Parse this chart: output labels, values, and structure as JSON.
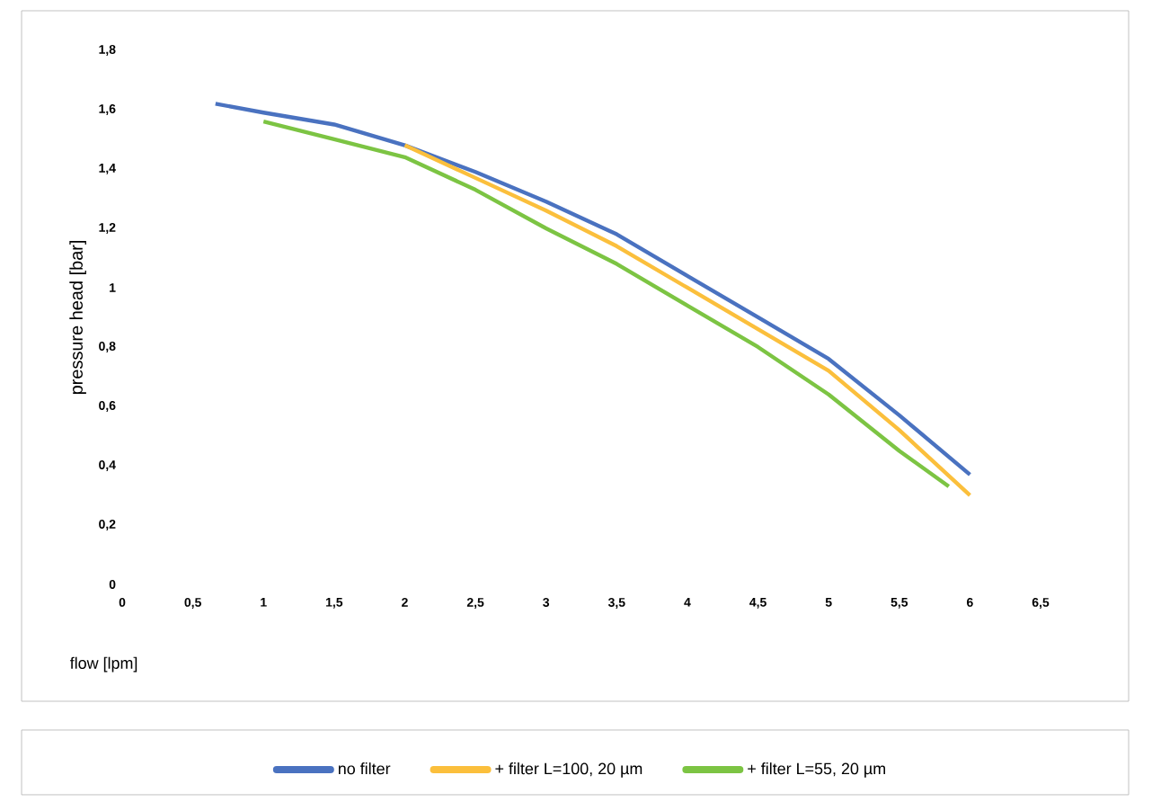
{
  "chart_data": {
    "type": "line",
    "xlabel": "flow [lpm]",
    "ylabel": "pressure head [bar]",
    "xlim": [
      0,
      6.5
    ],
    "ylim": [
      0,
      1.8
    ],
    "xticks": [
      0,
      {
        "value": 0.5,
        "label": "0,5"
      },
      1,
      {
        "value": 1.5,
        "label": "1,5"
      },
      2,
      {
        "value": 2.5,
        "label": "2,5"
      },
      3,
      {
        "value": 3.5,
        "label": "3,5"
      },
      4,
      {
        "value": 4.5,
        "label": "4,5"
      },
      5,
      {
        "value": 5.5,
        "label": "5,5"
      },
      6,
      {
        "value": 6.5,
        "label": "6,5"
      }
    ],
    "yticks": [
      0,
      {
        "value": 0.2,
        "label": "0,2"
      },
      {
        "value": 0.4,
        "label": "0,4"
      },
      {
        "value": 0.6,
        "label": "0,6"
      },
      {
        "value": 0.8,
        "label": "0,8"
      },
      1,
      {
        "value": 1.2,
        "label": "1,2"
      },
      {
        "value": 1.4,
        "label": "1,4"
      },
      {
        "value": 1.6,
        "label": "1,6"
      },
      {
        "value": 1.8,
        "label": "1,8"
      }
    ],
    "grid": false,
    "legend": "bottom",
    "marker": "none",
    "line_style": "solid",
    "series": [
      {
        "name": "no filter",
        "color": "#4a72c0",
        "x": [
          0.66,
          1,
          1.5,
          2,
          2.5,
          3,
          3.5,
          4,
          4.5,
          5,
          5.5,
          6
        ],
        "values": [
          1.62,
          1.59,
          1.55,
          1.48,
          1.39,
          1.29,
          1.18,
          1.04,
          0.9,
          0.76,
          0.57,
          0.37
        ]
      },
      {
        "name": "+ filter L=100, 20 µm",
        "color": "#fbbf3c",
        "x": [
          2,
          2.5,
          3,
          3.5,
          4,
          4.5,
          5,
          5.5,
          6
        ],
        "values": [
          1.48,
          1.37,
          1.26,
          1.14,
          1.0,
          0.86,
          0.72,
          0.52,
          0.3
        ]
      },
      {
        "name": "+ filter L=55, 20 µm",
        "color": "#7cc443",
        "x": [
          1,
          1.5,
          2,
          2.5,
          3,
          3.5,
          4,
          4.5,
          5,
          5.5,
          5.85
        ],
        "values": [
          1.56,
          1.5,
          1.44,
          1.33,
          1.2,
          1.08,
          0.94,
          0.8,
          0.64,
          0.45,
          0.33
        ]
      }
    ]
  }
}
